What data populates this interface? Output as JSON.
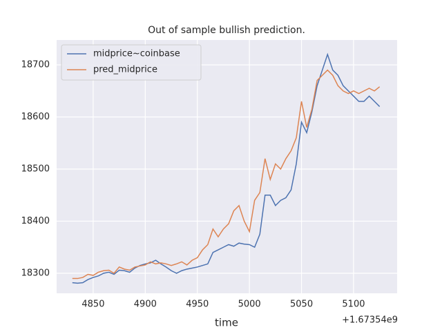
{
  "chart_data": {
    "type": "line",
    "title": "Out of sample bullish prediction.",
    "x_label": "time",
    "x_offset_label": "+1.67354e9",
    "x": [
      4830,
      4835,
      4840,
      4845,
      4850,
      4855,
      4860,
      4865,
      4870,
      4875,
      4880,
      4885,
      4890,
      4895,
      4900,
      4905,
      4910,
      4915,
      4920,
      4925,
      4930,
      4935,
      4940,
      4945,
      4950,
      4955,
      4960,
      4965,
      4970,
      4975,
      4980,
      4985,
      4990,
      4995,
      5000,
      5005,
      5010,
      5015,
      5020,
      5025,
      5030,
      5035,
      5040,
      5045,
      5050,
      5055,
      5060,
      5065,
      5070,
      5075,
      5080,
      5085,
      5090,
      5095,
      5100,
      5105,
      5110,
      5115,
      5120,
      5125
    ],
    "series": [
      {
        "name": "midprice~coinbase",
        "color": "#4c72b0",
        "values": [
          18282,
          18281,
          18282,
          18288,
          18292,
          18295,
          18300,
          18302,
          18298,
          18306,
          18305,
          18302,
          18310,
          18315,
          18318,
          18320,
          18325,
          18318,
          18312,
          18305,
          18300,
          18305,
          18308,
          18310,
          18312,
          18315,
          18318,
          18340,
          18345,
          18350,
          18355,
          18352,
          18358,
          18356,
          18355,
          18350,
          18375,
          18450,
          18450,
          18430,
          18440,
          18445,
          18460,
          18510,
          18590,
          18570,
          18610,
          18660,
          18690,
          18720,
          18690,
          18680,
          18660,
          18650,
          18640,
          18630,
          18630,
          18640,
          18630,
          18620
        ]
      },
      {
        "name": "pred_midprice",
        "color": "#dd8452",
        "values": [
          18290,
          18290,
          18292,
          18298,
          18296,
          18302,
          18305,
          18306,
          18300,
          18312,
          18308,
          18306,
          18312,
          18314,
          18316,
          18322,
          18318,
          18320,
          18318,
          18315,
          18318,
          18322,
          18316,
          18325,
          18330,
          18345,
          18355,
          18385,
          18370,
          18385,
          18395,
          18420,
          18430,
          18400,
          18380,
          18440,
          18455,
          18520,
          18480,
          18510,
          18500,
          18520,
          18535,
          18560,
          18630,
          18580,
          18615,
          18670,
          18680,
          18690,
          18680,
          18660,
          18650,
          18645,
          18650,
          18645,
          18650,
          18655,
          18650,
          18658
        ]
      }
    ],
    "xlim": [
      4814.9,
      5141.8
    ],
    "xticks": [
      4850,
      4900,
      4950,
      5000,
      5050,
      5100
    ],
    "ylim": [
      18261.6,
      18747.7
    ],
    "yticks": [
      18300,
      18400,
      18500,
      18600,
      18700
    ],
    "grid": true,
    "legend": "upper left"
  }
}
